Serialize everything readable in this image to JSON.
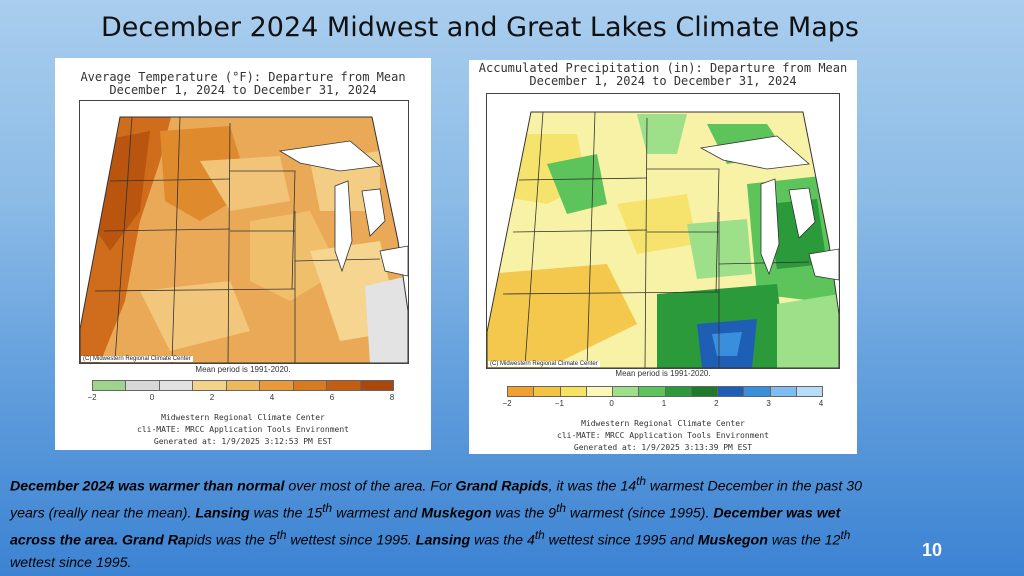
{
  "slide": {
    "title": "December 2024 Midwest and Great Lakes Climate Maps",
    "page_number": "10"
  },
  "temp_map": {
    "title_line1": "Average Temperature (°F): Departure from Mean",
    "title_line2": "December 1, 2024 to December 31, 2024",
    "copyright": "(C) Midwestern Regional Climate Center",
    "mean_period": "Mean period is 1991-2020.",
    "legend_colors": [
      "#9fd48f",
      "#d7d7d7",
      "#e2e2e2",
      "#f3d28a",
      "#eeb85c",
      "#e89a3a",
      "#d87a1f",
      "#c25d12",
      "#a8480c"
    ],
    "legend_ticks": [
      "−2",
      "0",
      "2",
      "4",
      "6",
      "8"
    ],
    "credit_line1": "Midwestern Regional Climate Center",
    "credit_line2": "cli-MATE: MRCC Application Tools Environment",
    "credit_line3": "Generated at: 1/9/2025 3:12:53 PM EST"
  },
  "precip_map": {
    "title_line1": "Accumulated Precipitation (in): Departure from Mean",
    "title_line2": "December 1, 2024 to December 31, 2024",
    "copyright": "(C) Midwestern Regional Climate Center",
    "mean_period": "Mean period is 1991-2020.",
    "legend_colors": [
      "#f0a030",
      "#f5c342",
      "#f7e260",
      "#fbf7b6",
      "#9ee08a",
      "#5cc45a",
      "#2a9a3a",
      "#1f7a2c",
      "#1e5fb5",
      "#3a8fdc",
      "#7fbdf0",
      "#b6dcf7"
    ],
    "legend_ticks": [
      "−2",
      "−1",
      "0",
      "1",
      "2",
      "3",
      "4"
    ],
    "credit_line1": "Midwestern Regional Climate Center",
    "credit_line2": "cli-MATE: MRCC Application Tools Environment",
    "credit_line3": "Generated at: 1/9/2025 3:13:39 PM EST"
  },
  "summary": {
    "s1": "December 2024 was warmer than normal",
    "s2": " over most of the area. For ",
    "s3": "Grand Rapids",
    "s4": ", it was the 14",
    "s5": "th",
    "s6": " warmest December in the past 30 years  (really near the mean).  ",
    "s7": "Lansing",
    "s8": " was the 15",
    "s9": "th",
    "s10": " warmest and ",
    "s11": "Muskegon",
    "s12": " was the 9",
    "s13": "th",
    "s14": " warmest (since 1995). ",
    "s15": "December was wet across the area.  Grand Ra",
    "s16": "pids was the 5",
    "s17": "th",
    "s18": " wettest since 1995. ",
    "s19": "Lansing",
    "s20": " was the 4",
    "s21": "th",
    "s22": " wettest since 1995 and ",
    "s23": "Muskegon",
    "s24": " was the  12",
    "s25": "th",
    "s26": " wettest since 1995."
  }
}
